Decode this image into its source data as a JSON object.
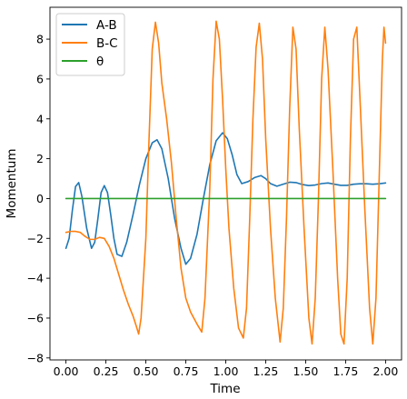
{
  "chart_data": {
    "type": "line",
    "title": "",
    "xlabel": "Time",
    "ylabel": "Momentum",
    "xlim": [
      -0.1,
      2.1
    ],
    "ylim": [
      -8.1,
      9.6
    ],
    "xticks": [
      0.0,
      0.25,
      0.5,
      0.75,
      1.0,
      1.25,
      1.5,
      1.75,
      2.0
    ],
    "xtick_labels": [
      "0.00",
      "0.25",
      "0.50",
      "0.75",
      "1.00",
      "1.25",
      "1.50",
      "1.75",
      "2.00"
    ],
    "yticks": [
      -8,
      -6,
      -4,
      -2,
      0,
      2,
      4,
      6,
      8
    ],
    "ytick_labels": [
      "−8",
      "−6",
      "−4",
      "−2",
      "0",
      "2",
      "4",
      "6",
      "8"
    ],
    "grid": false,
    "legend_position": "top-left",
    "series": [
      {
        "name": "A-B",
        "color": "#1f77b4",
        "points": [
          [
            0.0,
            -2.5
          ],
          [
            0.02,
            -2.0
          ],
          [
            0.04,
            -0.6
          ],
          [
            0.06,
            0.6
          ],
          [
            0.08,
            0.8
          ],
          [
            0.1,
            0.1
          ],
          [
            0.13,
            -1.5
          ],
          [
            0.16,
            -2.5
          ],
          [
            0.18,
            -2.2
          ],
          [
            0.2,
            -1.0
          ],
          [
            0.22,
            0.3
          ],
          [
            0.24,
            0.65
          ],
          [
            0.26,
            0.3
          ],
          [
            0.28,
            -0.8
          ],
          [
            0.3,
            -2.0
          ],
          [
            0.32,
            -2.8
          ],
          [
            0.35,
            -2.9
          ],
          [
            0.38,
            -2.2
          ],
          [
            0.42,
            -0.8
          ],
          [
            0.46,
            0.7
          ],
          [
            0.5,
            2.0
          ],
          [
            0.54,
            2.8
          ],
          [
            0.57,
            2.95
          ],
          [
            0.6,
            2.5
          ],
          [
            0.64,
            1.0
          ],
          [
            0.68,
            -1.0
          ],
          [
            0.72,
            -2.5
          ],
          [
            0.75,
            -3.3
          ],
          [
            0.78,
            -3.0
          ],
          [
            0.82,
            -1.8
          ],
          [
            0.86,
            0.0
          ],
          [
            0.9,
            1.7
          ],
          [
            0.94,
            2.9
          ],
          [
            0.98,
            3.3
          ],
          [
            1.01,
            3.0
          ],
          [
            1.04,
            2.2
          ],
          [
            1.07,
            1.2
          ],
          [
            1.1,
            0.75
          ],
          [
            1.14,
            0.85
          ],
          [
            1.18,
            1.05
          ],
          [
            1.22,
            1.15
          ],
          [
            1.25,
            1.0
          ],
          [
            1.28,
            0.75
          ],
          [
            1.32,
            0.62
          ],
          [
            1.36,
            0.72
          ],
          [
            1.4,
            0.82
          ],
          [
            1.44,
            0.8
          ],
          [
            1.48,
            0.7
          ],
          [
            1.52,
            0.65
          ],
          [
            1.56,
            0.68
          ],
          [
            1.6,
            0.75
          ],
          [
            1.64,
            0.78
          ],
          [
            1.68,
            0.72
          ],
          [
            1.72,
            0.66
          ],
          [
            1.76,
            0.66
          ],
          [
            1.8,
            0.72
          ],
          [
            1.84,
            0.74
          ],
          [
            1.88,
            0.74
          ],
          [
            1.92,
            0.72
          ],
          [
            1.96,
            0.74
          ],
          [
            2.0,
            0.78
          ]
        ]
      },
      {
        "name": "B-C",
        "color": "#ff7f0e",
        "points": [
          [
            0.0,
            -1.7
          ],
          [
            0.03,
            -1.65
          ],
          [
            0.06,
            -1.65
          ],
          [
            0.09,
            -1.7
          ],
          [
            0.12,
            -1.9
          ],
          [
            0.15,
            -2.05
          ],
          [
            0.18,
            -2.05
          ],
          [
            0.21,
            -1.95
          ],
          [
            0.24,
            -2.0
          ],
          [
            0.27,
            -2.4
          ],
          [
            0.3,
            -3.0
          ],
          [
            0.33,
            -3.8
          ],
          [
            0.36,
            -4.6
          ],
          [
            0.39,
            -5.3
          ],
          [
            0.42,
            -5.9
          ],
          [
            0.44,
            -6.4
          ],
          [
            0.455,
            -6.8
          ],
          [
            0.47,
            -6.0
          ],
          [
            0.5,
            -2.0
          ],
          [
            0.52,
            3.0
          ],
          [
            0.54,
            7.5
          ],
          [
            0.56,
            8.85
          ],
          [
            0.58,
            7.8
          ],
          [
            0.6,
            5.8
          ],
          [
            0.63,
            4.0
          ],
          [
            0.66,
            1.8
          ],
          [
            0.69,
            -1.0
          ],
          [
            0.72,
            -3.5
          ],
          [
            0.75,
            -5.0
          ],
          [
            0.78,
            -5.7
          ],
          [
            0.82,
            -6.3
          ],
          [
            0.85,
            -6.7
          ],
          [
            0.87,
            -5.0
          ],
          [
            0.9,
            0.5
          ],
          [
            0.92,
            6.0
          ],
          [
            0.94,
            8.9
          ],
          [
            0.96,
            8.0
          ],
          [
            0.98,
            5.0
          ],
          [
            1.0,
            1.5
          ],
          [
            1.02,
            -1.5
          ],
          [
            1.05,
            -4.5
          ],
          [
            1.08,
            -6.5
          ],
          [
            1.11,
            -7.0
          ],
          [
            1.13,
            -5.5
          ],
          [
            1.15,
            -1.0
          ],
          [
            1.17,
            4.0
          ],
          [
            1.19,
            7.6
          ],
          [
            1.21,
            8.8
          ],
          [
            1.23,
            7.0
          ],
          [
            1.25,
            3.0
          ],
          [
            1.28,
            -1.5
          ],
          [
            1.31,
            -5.0
          ],
          [
            1.34,
            -7.2
          ],
          [
            1.36,
            -5.5
          ],
          [
            1.38,
            -1.0
          ],
          [
            1.4,
            4.5
          ],
          [
            1.42,
            8.6
          ],
          [
            1.44,
            7.5
          ],
          [
            1.46,
            3.5
          ],
          [
            1.49,
            -1.5
          ],
          [
            1.52,
            -6.0
          ],
          [
            1.54,
            -7.3
          ],
          [
            1.56,
            -5.0
          ],
          [
            1.58,
            0.0
          ],
          [
            1.6,
            6.0
          ],
          [
            1.62,
            8.6
          ],
          [
            1.64,
            6.5
          ],
          [
            1.67,
            1.5
          ],
          [
            1.7,
            -4.0
          ],
          [
            1.72,
            -6.8
          ],
          [
            1.74,
            -7.3
          ],
          [
            1.76,
            -4.0
          ],
          [
            1.78,
            3.0
          ],
          [
            1.8,
            8.0
          ],
          [
            1.82,
            8.6
          ],
          [
            1.84,
            5.0
          ],
          [
            1.87,
            -0.5
          ],
          [
            1.9,
            -5.5
          ],
          [
            1.92,
            -7.3
          ],
          [
            1.94,
            -5.0
          ],
          [
            1.96,
            1.0
          ],
          [
            1.98,
            7.0
          ],
          [
            1.99,
            8.6
          ],
          [
            2.0,
            7.8
          ]
        ]
      },
      {
        "name": "θ",
        "color": "#2ca02c",
        "points": [
          [
            0.0,
            0.0
          ],
          [
            0.5,
            0.0
          ],
          [
            1.0,
            0.0
          ],
          [
            1.5,
            0.0
          ],
          [
            2.0,
            0.0
          ]
        ]
      }
    ]
  }
}
